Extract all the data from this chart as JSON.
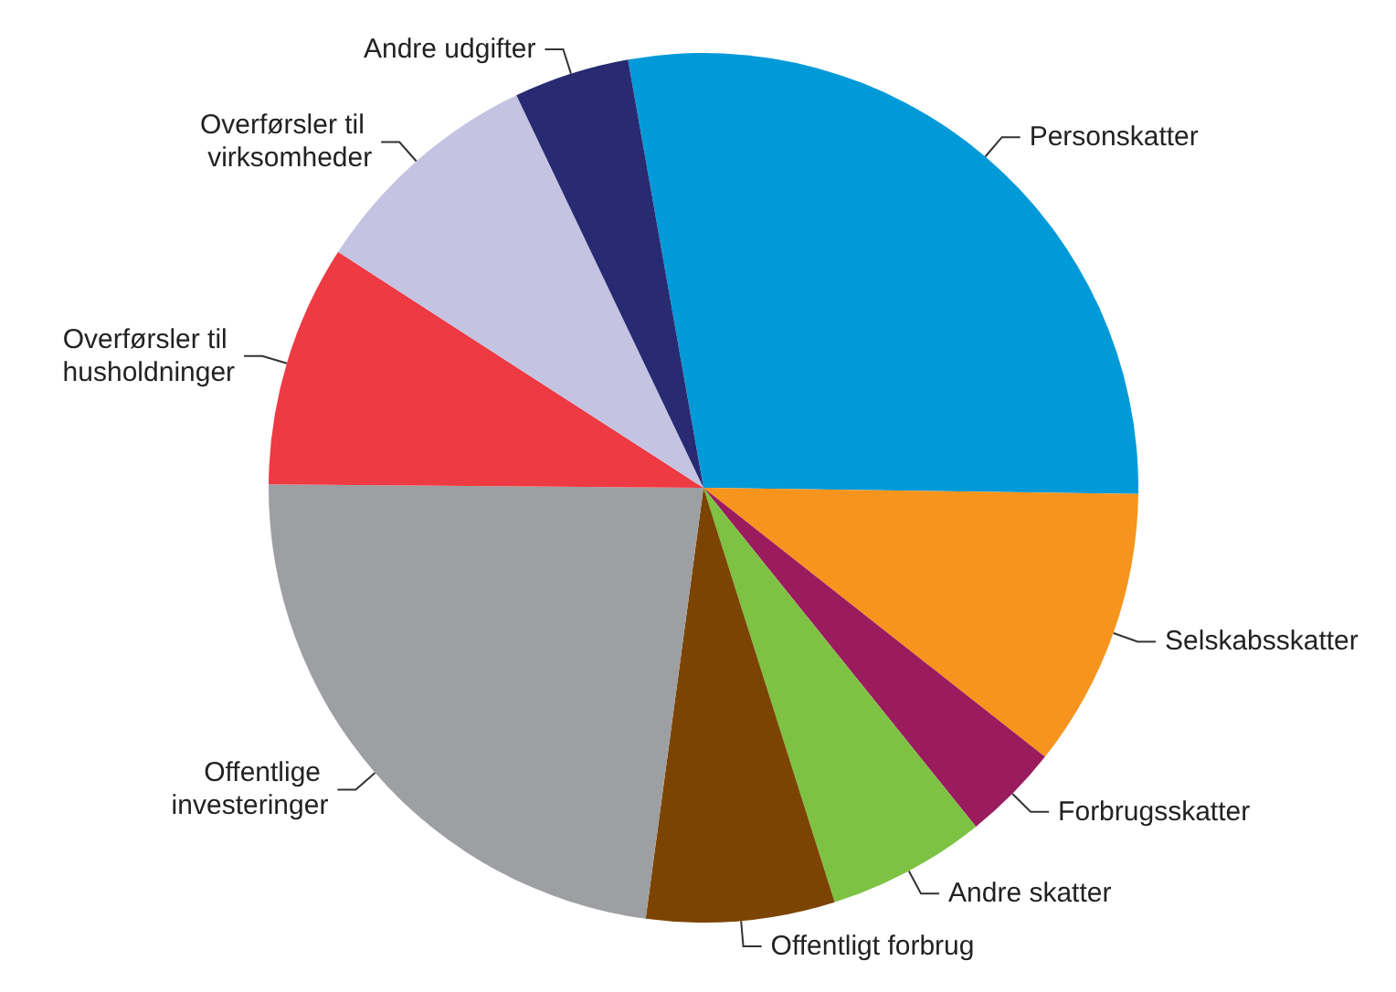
{
  "chart_data": {
    "type": "pie",
    "categories": [
      "Personskatter",
      "Selskabsskatter",
      "Forbrugsskatter",
      "Andre skatter",
      "Offentligt forbrug",
      "Offentlige investeringer",
      "Overførsler til husholdninger",
      "Overførsler til virksomheder",
      "Andre udgifter"
    ],
    "values": [
      28.0,
      10.4,
      3.6,
      5.9,
      7.0,
      23.0,
      9.0,
      8.8,
      4.3
    ],
    "colors": [
      "#009ad9",
      "#f7941d",
      "#9b1b5f",
      "#7dc242",
      "#7b4403",
      "#9d9fa2",
      "#ee3a43",
      "#c5c3e2",
      "#282a72"
    ]
  }
}
